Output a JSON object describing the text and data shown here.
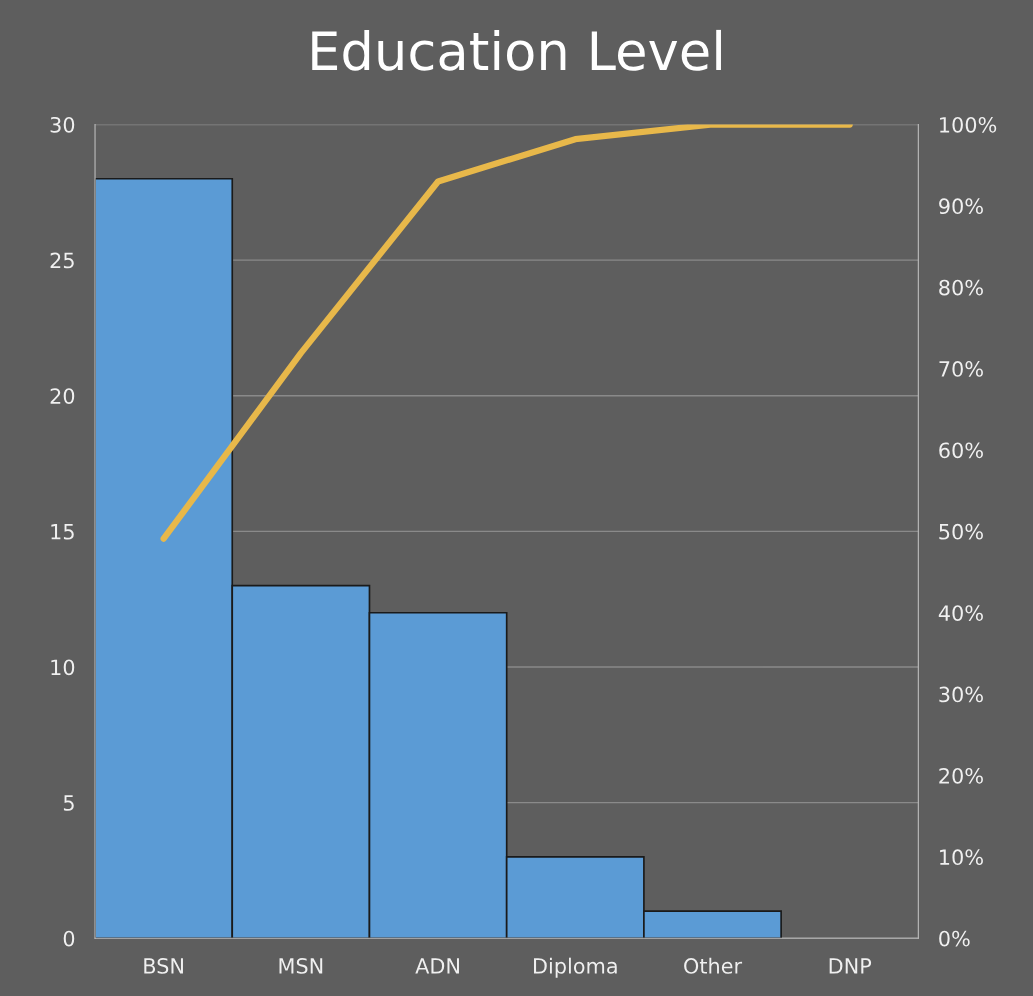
{
  "chart_data": {
    "type": "bar",
    "title": "Education Level",
    "categories": [
      "BSN",
      "MSN",
      "ADN",
      "Diploma",
      "Other",
      "DNP"
    ],
    "series": [
      {
        "color": "#5b9bd5",
        "values": [
          28,
          13,
          12,
          3,
          1,
          0
        ]
      },
      {
        "type": "line",
        "axis": "y2",
        "color": "#e8b84a",
        "values": [
          49.1,
          71.9,
          93.0,
          98.2,
          100,
          100
        ]
      }
    ],
    "ylim": [
      0,
      30
    ],
    "yticks": [
      0,
      5,
      10,
      15,
      20,
      25,
      30
    ],
    "y2lim": [
      0,
      100
    ],
    "y2ticks": [
      {
        "value": 0,
        "label": "0%"
      },
      {
        "value": 10,
        "label": "10%"
      },
      {
        "value": 20,
        "label": "20%"
      },
      {
        "value": 30,
        "label": "30%"
      },
      {
        "value": 40,
        "label": "40%"
      },
      {
        "value": 50,
        "label": "50%"
      },
      {
        "value": 60,
        "label": "60%"
      },
      {
        "value": 70,
        "label": "70%"
      },
      {
        "value": 80,
        "label": "80%"
      },
      {
        "value": 90,
        "label": "90%"
      },
      {
        "value": 100,
        "label": "100%"
      }
    ],
    "grid": "y",
    "legend": false
  }
}
